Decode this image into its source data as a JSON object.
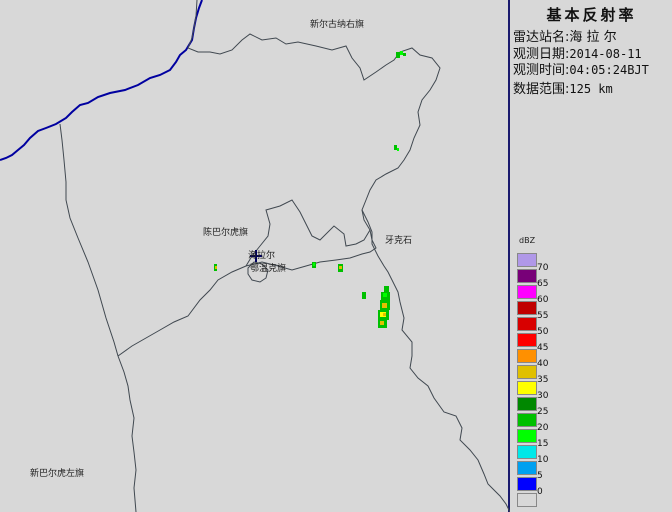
{
  "panel": {
    "title": "基本反射率",
    "station_label": "雷达站名:",
    "station_value": "海 拉 尔",
    "date_label": "观测日期:",
    "date_value": "2014-08-11",
    "time_label": "观测时间:",
    "time_value": "04:05:24BJT",
    "range_label": "数据范围:",
    "range_value": "125 km"
  },
  "places": {
    "xinyou": "新尔古纳右旗",
    "chenbaerhuqi": "陈巴尔虎旗",
    "hailaer": "海拉尔",
    "ewenke": "鄂温克旗",
    "yakeshi": "牙克石",
    "xinzuo": "新巴尔虎左旗"
  },
  "legend": {
    "unit": "dBZ",
    "levels": [
      {
        "label": "70",
        "color": "#b098e8"
      },
      {
        "label": "65",
        "color": "#780078"
      },
      {
        "label": "60",
        "color": "#ff00ff"
      },
      {
        "label": "55",
        "color": "#c00000"
      },
      {
        "label": "50",
        "color": "#d80000"
      },
      {
        "label": "45",
        "color": "#ff0000"
      },
      {
        "label": "40",
        "color": "#ff9000"
      },
      {
        "label": "35",
        "color": "#e0c000"
      },
      {
        "label": "30",
        "color": "#ffff00"
      },
      {
        "label": "25",
        "color": "#008800"
      },
      {
        "label": "20",
        "color": "#00c000"
      },
      {
        "label": "15",
        "color": "#00ff00"
      },
      {
        "label": "10",
        "color": "#00e8e8"
      },
      {
        "label": "5",
        "color": "#00a0f0"
      },
      {
        "label": "0",
        "color": "#0000ff"
      },
      {
        "label": "",
        "color": "#d8d8d8"
      }
    ]
  },
  "radar_center_icon": "plus-marker-icon",
  "colors": {
    "national_border": "#0000a0",
    "admin_border": "#404850",
    "frame": "#1a1a6e"
  }
}
